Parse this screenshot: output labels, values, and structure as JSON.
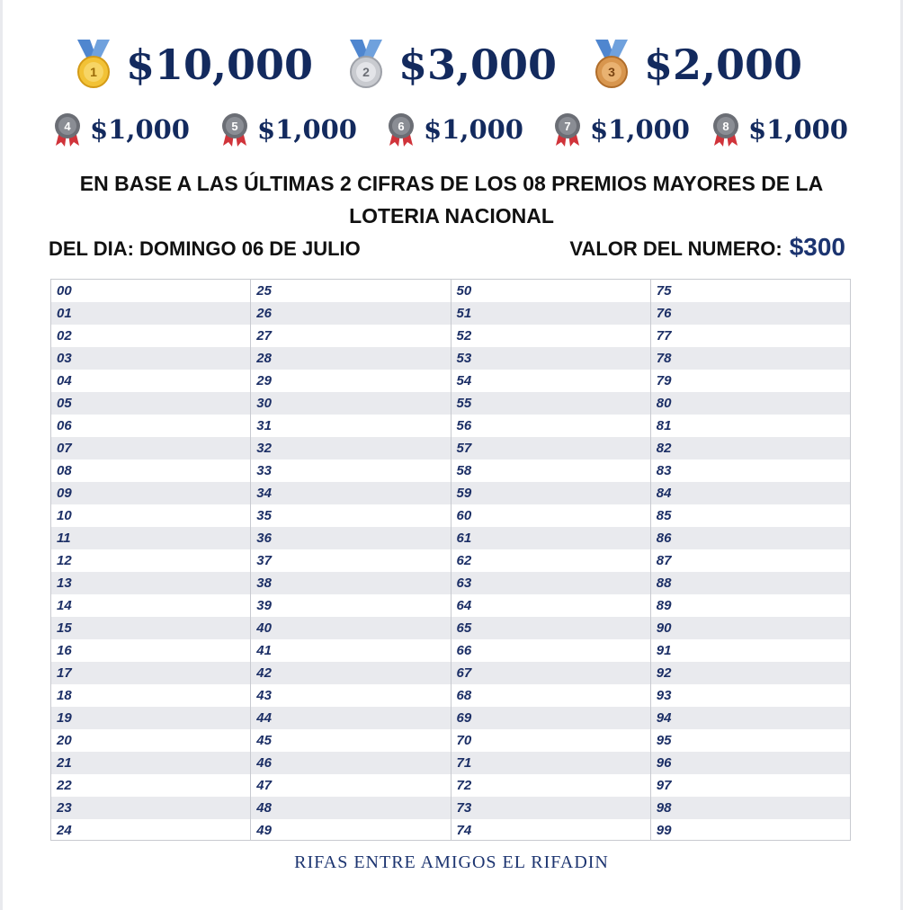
{
  "prizes_top": [
    {
      "place": "1",
      "amount": "$10,000",
      "medal": "gold-medal-icon",
      "color": "#f2c236"
    },
    {
      "place": "2",
      "amount": "$3,000",
      "medal": "silver-medal-icon",
      "color": "#c9cbd0"
    },
    {
      "place": "3",
      "amount": "$2,000",
      "medal": "bronze-medal-icon",
      "color": "#d8964e"
    }
  ],
  "prizes_small": [
    {
      "place": "4",
      "amount": "$1,000",
      "medal": "rosette-4-icon"
    },
    {
      "place": "5",
      "amount": "$1,000",
      "medal": "rosette-5-icon"
    },
    {
      "place": "6",
      "amount": "$1,000",
      "medal": "rosette-6-icon"
    },
    {
      "place": "7",
      "amount": "$1,000",
      "medal": "rosette-7-icon"
    },
    {
      "place": "8",
      "amount": "$1,000",
      "medal": "rosette-8-icon"
    }
  ],
  "heading": {
    "line1": "EN BASE A LAS ÚLTIMAS 2 CIFRAS DE LOS 08 PREMIOS MAYORES DE LA",
    "line2": "LOTERIA NACIONAL"
  },
  "date_label": "DEL DIA: DOMINGO 06 DE JULIO",
  "value_label": "VALOR DEL NUMERO:",
  "value_price": "$300",
  "numbers": [
    [
      "00",
      "01",
      "02",
      "03",
      "04",
      "05",
      "06",
      "07",
      "08",
      "09",
      "10",
      "11",
      "12",
      "13",
      "14",
      "15",
      "16",
      "17",
      "18",
      "19",
      "20",
      "21",
      "22",
      "23",
      "24"
    ],
    [
      "25",
      "26",
      "27",
      "28",
      "29",
      "30",
      "31",
      "32",
      "33",
      "34",
      "35",
      "36",
      "37",
      "38",
      "39",
      "40",
      "41",
      "42",
      "43",
      "44",
      "45",
      "46",
      "47",
      "48",
      "49"
    ],
    [
      "50",
      "51",
      "52",
      "53",
      "54",
      "55",
      "56",
      "57",
      "58",
      "59",
      "60",
      "61",
      "62",
      "63",
      "64",
      "65",
      "66",
      "67",
      "68",
      "69",
      "70",
      "71",
      "72",
      "73",
      "74"
    ],
    [
      "75",
      "76",
      "77",
      "78",
      "79",
      "80",
      "81",
      "82",
      "83",
      "84",
      "85",
      "86",
      "87",
      "88",
      "89",
      "90",
      "91",
      "92",
      "93",
      "94",
      "95",
      "96",
      "97",
      "98",
      "99"
    ]
  ],
  "footer": "RIFAS ENTRE AMIGOS EL RIFADIN",
  "colors": {
    "navy": "#132a5e",
    "shade": "#e9eaee",
    "ribbon_blue": "#5a8fd0",
    "ribbon_red": "#d0333a"
  }
}
